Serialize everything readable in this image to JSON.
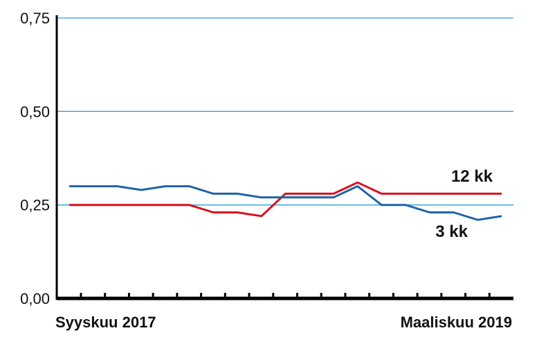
{
  "chart_data": {
    "type": "line",
    "yticks": [
      "0,00",
      "0,25",
      "0,50",
      "0,75"
    ],
    "ylim": [
      0,
      0.75
    ],
    "xlabels": {
      "start": "Syyskuu 2017",
      "end": "Maaliskuu 2019"
    },
    "x": [
      "2017-09",
      "2017-10",
      "2017-11",
      "2017-12",
      "2018-01",
      "2018-02",
      "2018-03",
      "2018-04",
      "2018-05",
      "2018-06",
      "2018-07",
      "2018-08",
      "2018-09",
      "2018-10",
      "2018-11",
      "2018-12",
      "2019-01",
      "2019-02",
      "2019-03"
    ],
    "series": [
      {
        "name": "3 kk",
        "color": "#1f63a8",
        "values": [
          0.3,
          0.3,
          0.3,
          0.29,
          0.3,
          0.3,
          0.28,
          0.28,
          0.27,
          0.27,
          0.27,
          0.27,
          0.3,
          0.25,
          0.25,
          0.23,
          0.23,
          0.21,
          0.22
        ]
      },
      {
        "name": "12 kk",
        "color": "#d9101f",
        "values": [
          0.25,
          0.25,
          0.25,
          0.25,
          0.25,
          0.25,
          0.23,
          0.23,
          0.22,
          0.28,
          0.28,
          0.28,
          0.31,
          0.28,
          0.28,
          0.28,
          0.28,
          0.28,
          0.28
        ]
      }
    ],
    "grid": true,
    "grid_color": "#2aa3d8"
  }
}
